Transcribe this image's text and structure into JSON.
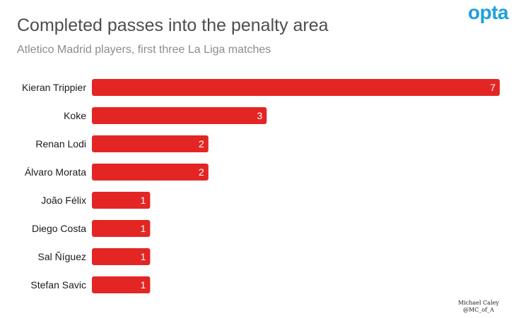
{
  "header": {
    "title": "Completed passes into the penalty area",
    "subtitle": "Atletico Madrid players, first three La Liga matches",
    "logo": "opta"
  },
  "credit": {
    "name": "Michael Caley",
    "handle": "@MC_of_A"
  },
  "chart_data": {
    "type": "bar",
    "orientation": "horizontal",
    "categories": [
      "Kieran Trippier",
      "Koke",
      "Renan Lodi",
      "Álvaro Morata",
      "João Félix",
      "Diego Costa",
      "Sal Ñíguez",
      "Stefan Savic"
    ],
    "values": [
      7,
      3,
      2,
      2,
      1,
      1,
      1,
      1
    ],
    "title": "Completed passes into the penalty area",
    "subtitle": "Atletico Madrid players, first three La Liga matches",
    "xlim": [
      0,
      7
    ],
    "data_labels": true,
    "grid": false,
    "bar_color": "#e32624"
  }
}
